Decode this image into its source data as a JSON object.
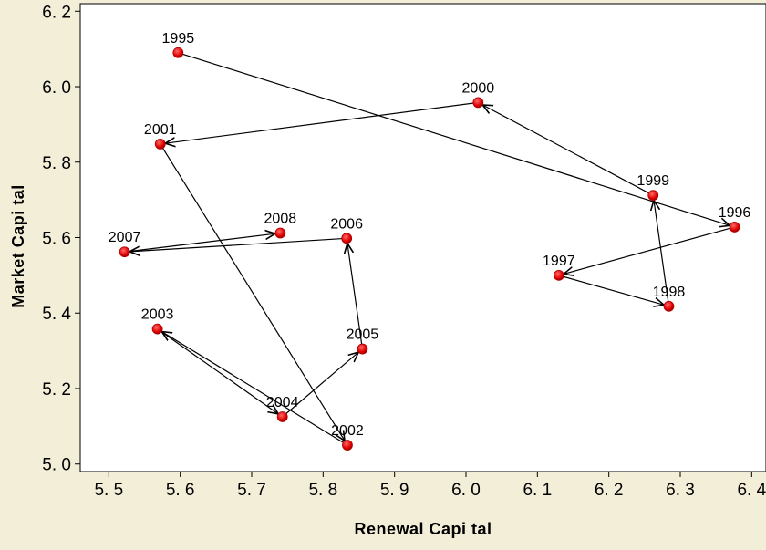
{
  "chart_data": {
    "type": "scatter",
    "title": "",
    "xlabel": "Renewal  Capi tal",
    "ylabel": "Market  Capi tal",
    "xlim": [
      5.46,
      6.42
    ],
    "ylim": [
      4.98,
      6.22
    ],
    "x_ticks": [
      5.5,
      5.6,
      5.7,
      5.8,
      5.9,
      6.0,
      6.1,
      6.2,
      6.3,
      6.4
    ],
    "x_tick_labels": [
      "5. 5",
      "5. 6",
      "5. 7",
      "5. 8",
      "5. 9",
      "6. 0",
      "6. 1",
      "6. 2",
      "6. 3",
      "6. 4"
    ],
    "y_ticks": [
      5.0,
      5.2,
      5.4,
      5.6,
      5.8,
      6.0,
      6.2
    ],
    "y_tick_labels": [
      "5. 0",
      "5. 2",
      "5. 4",
      "5. 6",
      "5. 8",
      "6. 0",
      "6. 2"
    ],
    "connected_with_arrows": true,
    "grid": false,
    "marker_color": "#e00000",
    "points": [
      {
        "label": "1995",
        "x": 5.597,
        "y": 6.09
      },
      {
        "label": "1996",
        "x": 6.376,
        "y": 5.628
      },
      {
        "label": "1997",
        "x": 6.13,
        "y": 5.5
      },
      {
        "label": "1998",
        "x": 6.284,
        "y": 5.418
      },
      {
        "label": "1999",
        "x": 6.262,
        "y": 5.712
      },
      {
        "label": "2000",
        "x": 6.017,
        "y": 5.958
      },
      {
        "label": "2001",
        "x": 5.572,
        "y": 5.848
      },
      {
        "label": "2002",
        "x": 5.834,
        "y": 5.05
      },
      {
        "label": "2003",
        "x": 5.568,
        "y": 5.358
      },
      {
        "label": "2004",
        "x": 5.743,
        "y": 5.125
      },
      {
        "label": "2005",
        "x": 5.855,
        "y": 5.305
      },
      {
        "label": "2006",
        "x": 5.833,
        "y": 5.598
      },
      {
        "label": "2007",
        "x": 5.522,
        "y": 5.562
      },
      {
        "label": "2008",
        "x": 5.74,
        "y": 5.612
      }
    ]
  }
}
